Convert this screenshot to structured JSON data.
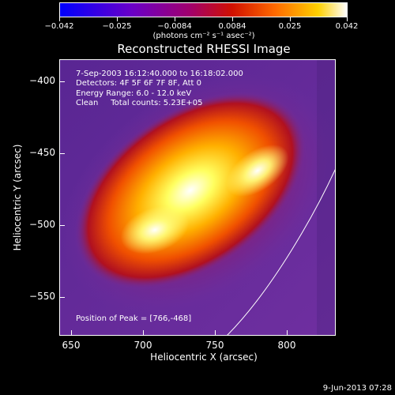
{
  "colorbar": {
    "ticks": [
      "−0.042",
      "−0.025",
      "−0.0084",
      "0.0084",
      "0.025",
      "0.042"
    ],
    "units": "(photons cm⁻² s⁻¹ asec⁻²)"
  },
  "title": "Reconstructed RHESSI Image",
  "info": {
    "time_range": "7-Sep-2003 16:12:40.000 to 16:18:02.000",
    "detectors": "Detectors: 4F 5F 6F 7F 8F, Att 0",
    "energy": "Energy Range: 6.0 - 12.0 keV",
    "clean": "Clean     Total counts: 5.23E+05",
    "peak": "Position of Peak = [766,-468]"
  },
  "axes": {
    "x_title": "Heliocentric X (arcsec)",
    "y_title": "Heliocentric Y (arcsec)",
    "x_ticks": [
      "650",
      "700",
      "750",
      "800"
    ],
    "y_ticks": [
      "−400",
      "−450",
      "−500",
      "−550"
    ]
  },
  "timestamp": "9-Jun-2013 07:28",
  "colors": {
    "background": "#000000",
    "frame": "#ffffff"
  }
}
